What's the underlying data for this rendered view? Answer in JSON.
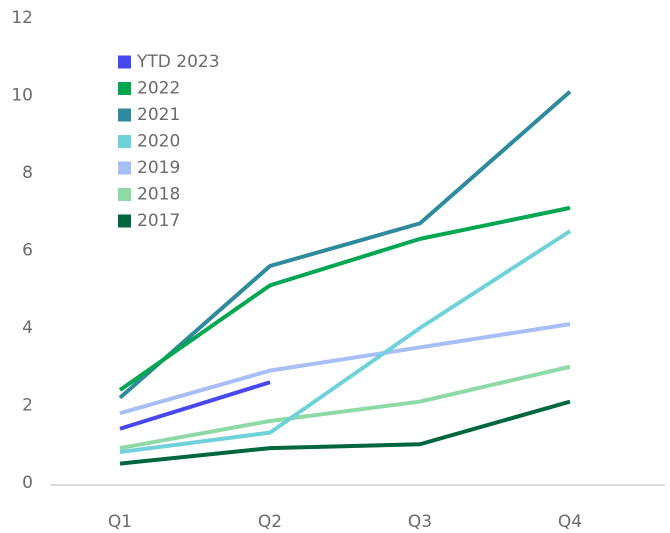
{
  "chart_data": {
    "type": "line",
    "categories": [
      "Q1",
      "Q2",
      "Q3",
      "Q4"
    ],
    "ylim": [
      0,
      12
    ],
    "yticks": [
      0,
      2,
      4,
      6,
      8,
      10,
      12
    ],
    "series": [
      {
        "name": "YTD 2023",
        "color": "#4747ef",
        "values": [
          1.4,
          2.6,
          null,
          null
        ]
      },
      {
        "name": "2022",
        "color": "#00a650",
        "values": [
          2.4,
          5.1,
          6.3,
          7.1
        ]
      },
      {
        "name": "2021",
        "color": "#2e8a9d",
        "values": [
          2.2,
          5.6,
          6.7,
          10.1
        ]
      },
      {
        "name": "2020",
        "color": "#6fd1d9",
        "values": [
          0.8,
          1.3,
          4.0,
          6.5
        ]
      },
      {
        "name": "2019",
        "color": "#a8bef7",
        "values": [
          1.8,
          2.9,
          3.5,
          4.1
        ]
      },
      {
        "name": "2018",
        "color": "#8edaa7",
        "values": [
          0.9,
          1.6,
          2.1,
          3.0
        ]
      },
      {
        "name": "2017",
        "color": "#00663d",
        "values": [
          0.5,
          0.9,
          1.0,
          2.1
        ]
      }
    ]
  }
}
